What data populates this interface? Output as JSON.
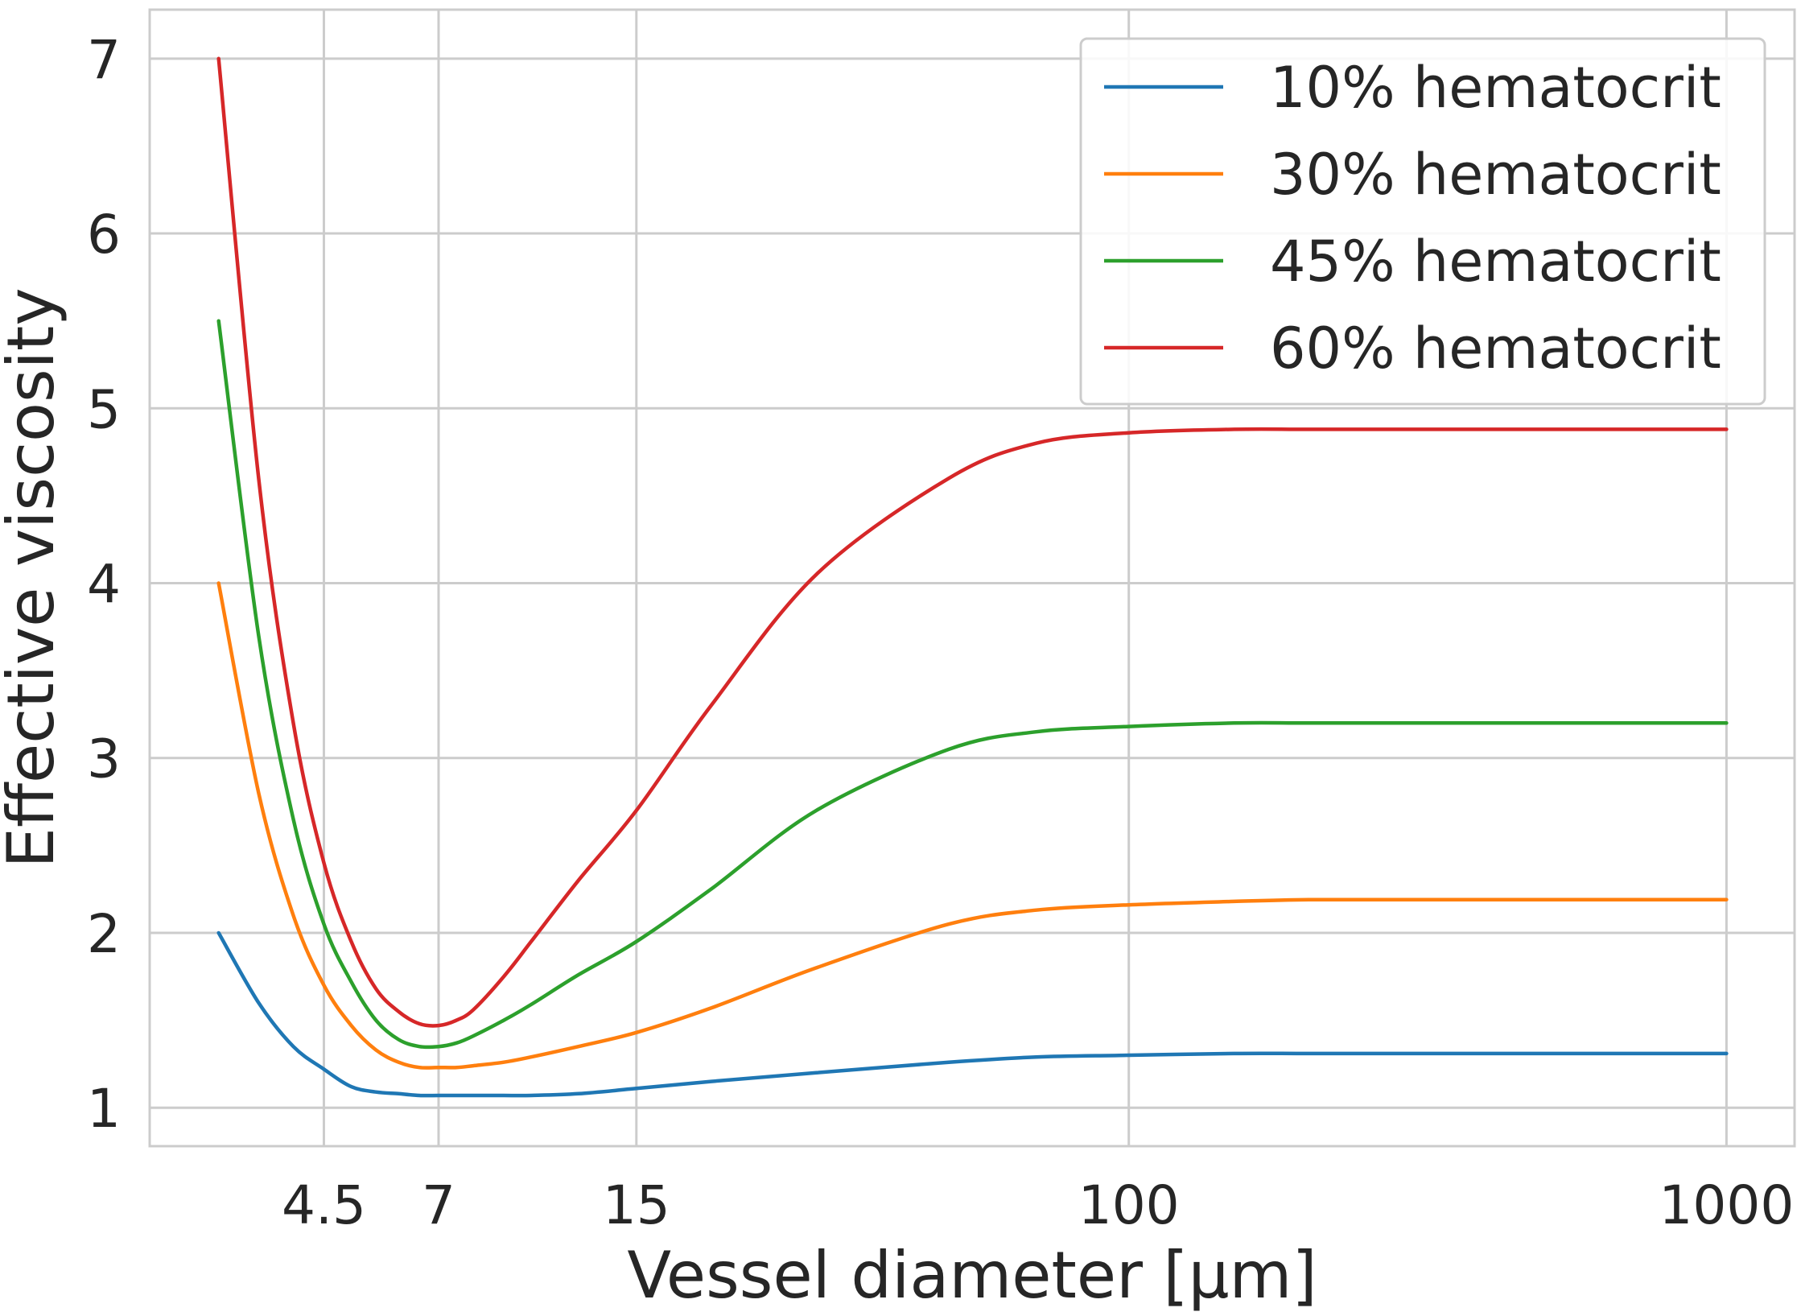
{
  "chart_data": {
    "type": "line",
    "title": "",
    "xlabel": "Vessel diameter [μm]",
    "ylabel": "Effective viscosity",
    "xscale": "log",
    "xlim": [
      2.3,
      1300
    ],
    "ylim": [
      0.78,
      7.28
    ],
    "x_ticks": [
      4.5,
      7,
      15,
      100,
      1000
    ],
    "x_tick_labels": [
      "4.5",
      "7",
      "15",
      "100",
      "1000"
    ],
    "y_ticks": [
      1,
      2,
      3,
      4,
      5,
      6,
      7
    ],
    "y_tick_labels": [
      "1",
      "2",
      "3",
      "4",
      "5",
      "6",
      "7"
    ],
    "grid": true,
    "legend_position": "top-right",
    "x": [
      3,
      3.5,
      4,
      4.5,
      5,
      5.5,
      6,
      6.5,
      7,
      7.5,
      8,
      9,
      10,
      12,
      15,
      20,
      30,
      50,
      70,
      100,
      150,
      200,
      300,
      500,
      700,
      1000
    ],
    "series": [
      {
        "name": "10% hematocrit",
        "color": "#1f77b4",
        "values": [
          2.0,
          1.6,
          1.35,
          1.22,
          1.12,
          1.09,
          1.08,
          1.07,
          1.07,
          1.07,
          1.07,
          1.07,
          1.07,
          1.08,
          1.11,
          1.15,
          1.2,
          1.26,
          1.29,
          1.3,
          1.31,
          1.31,
          1.31,
          1.31,
          1.31,
          1.31
        ]
      },
      {
        "name": "30% hematocrit",
        "color": "#ff7f0e",
        "values": [
          4.0,
          2.8,
          2.1,
          1.7,
          1.47,
          1.33,
          1.26,
          1.23,
          1.23,
          1.23,
          1.24,
          1.26,
          1.29,
          1.35,
          1.43,
          1.57,
          1.8,
          2.05,
          2.13,
          2.16,
          2.18,
          2.19,
          2.19,
          2.19,
          2.19,
          2.19
        ]
      },
      {
        "name": "45% hematocrit",
        "color": "#2ca02c",
        "values": [
          5.5,
          3.7,
          2.65,
          2.05,
          1.72,
          1.5,
          1.39,
          1.35,
          1.35,
          1.37,
          1.41,
          1.5,
          1.59,
          1.76,
          1.95,
          2.25,
          2.7,
          3.05,
          3.15,
          3.18,
          3.2,
          3.2,
          3.2,
          3.2,
          3.2,
          3.2
        ]
      },
      {
        "name": "60% hematocrit",
        "color": "#d62728",
        "values": [
          7.0,
          4.6,
          3.2,
          2.4,
          1.95,
          1.68,
          1.55,
          1.48,
          1.47,
          1.5,
          1.56,
          1.75,
          1.95,
          2.3,
          2.7,
          3.3,
          4.05,
          4.6,
          4.8,
          4.86,
          4.88,
          4.88,
          4.88,
          4.88,
          4.88,
          4.88
        ]
      }
    ]
  }
}
